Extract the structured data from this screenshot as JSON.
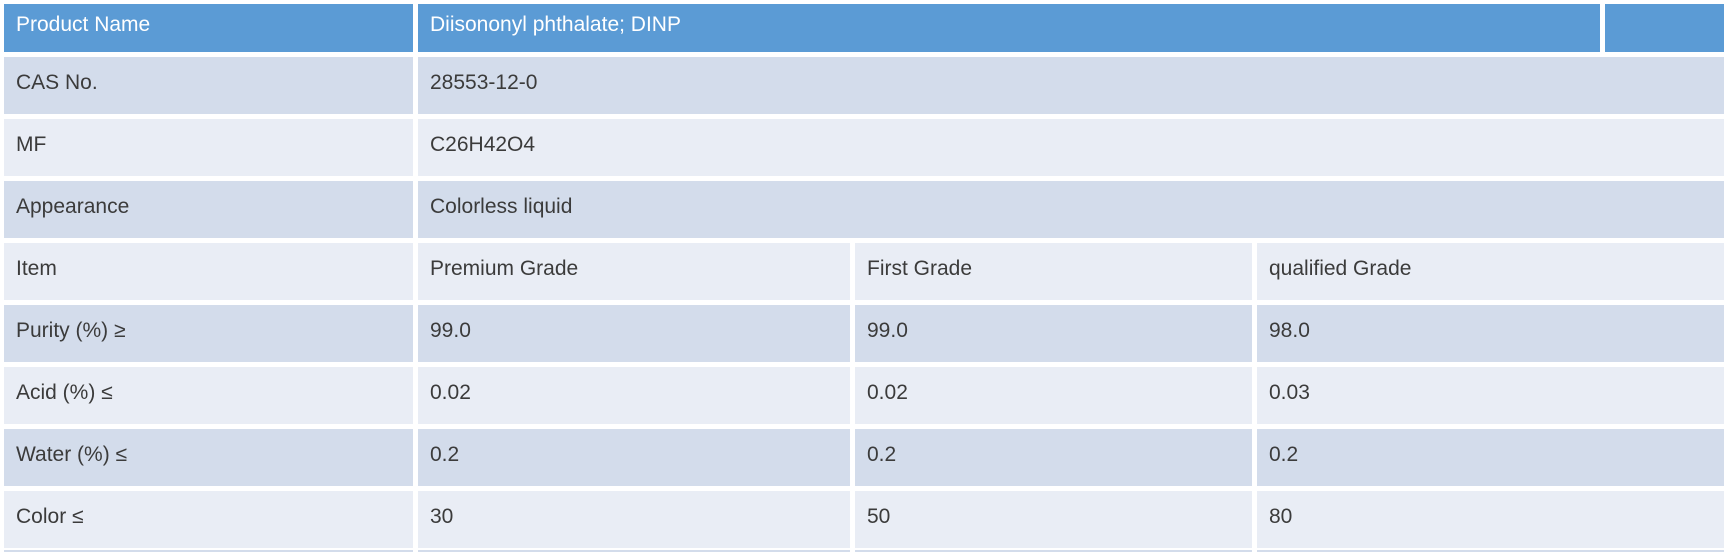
{
  "table": {
    "info_rows": [
      {
        "label": "Product Name",
        "value": "Diisononyl phthalate; DINP"
      },
      {
        "label": "CAS No.",
        "value": "28553-12-0"
      },
      {
        "label": "MF",
        "value": "C26H42O4"
      },
      {
        "label": "Appearance",
        "value": "Colorless liquid"
      }
    ],
    "spec_header": {
      "item_label": "Item",
      "premium_label": "Premium Grade",
      "first_label": "First Grade",
      "qualified_label": "qualified Grade"
    },
    "spec_rows": [
      {
        "item": "Purity (%) ≥",
        "premium": "99.0",
        "first": "99.0",
        "qualified": "98.0"
      },
      {
        "item": "Acid (%) ≤",
        "premium": "0.02",
        "first": "0.02",
        "qualified": "0.03"
      },
      {
        "item": "Water (%) ≤",
        "premium": "0.2",
        "first": "0.2",
        "qualified": "0.2"
      },
      {
        "item": "Color ≤",
        "premium": "30",
        "first": "50",
        "qualified": "80"
      }
    ]
  },
  "colors": {
    "header_bg": "#5B9BD5",
    "band_dark": "#D3DCEB",
    "band_light": "#E9EDF5",
    "header_text": "#FFFFFF",
    "body_text": "#3B3B3B",
    "page_bg": "#FFFFFF"
  }
}
